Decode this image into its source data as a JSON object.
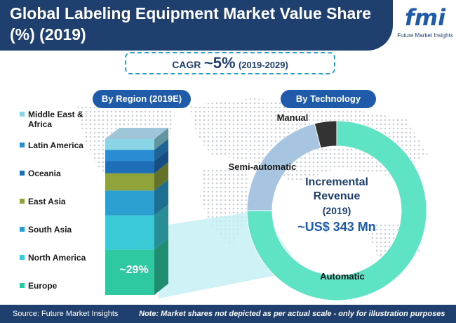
{
  "header": {
    "title": "Global Labeling Equipment Market Value Share (%) (2019)"
  },
  "logo": {
    "word": "fmi",
    "subtitle": "Future Market Insights"
  },
  "cagr": {
    "label": "CAGR",
    "value": "~5%",
    "period": "(2019-2029)"
  },
  "region_chart": {
    "heading": "By Region (2019E)",
    "highlight_label": "~29%"
  },
  "technology_chart": {
    "heading": "By Technology",
    "center": {
      "line1": "Incremental",
      "line2": "Revenue",
      "line3": "(2019)",
      "line4": "~US$ 343 Mn"
    }
  },
  "chart_data": [
    {
      "type": "bar",
      "title": "By Region (2019E)",
      "stacked": true,
      "categories": [
        "Europe",
        "North America",
        "South Asia",
        "East Asia",
        "Oceania",
        "Latin America",
        "Middle East & Africa"
      ],
      "values": [
        29,
        22,
        16,
        11,
        8,
        7,
        7
      ],
      "labels": [
        "~29%",
        "",
        "",
        "",
        "",
        "",
        ""
      ],
      "colors": [
        "#2ec9a0",
        "#3ac9d6",
        "#2a9fd0",
        "#8ea33a",
        "#1f6fb8",
        "#2a8dd4",
        "#8ad6e6"
      ],
      "legend_placement": "left"
    },
    {
      "type": "pie",
      "title": "By Technology",
      "donut": true,
      "categories": [
        "Automatic",
        "Semi-automatic",
        "Manual"
      ],
      "values": [
        75,
        21,
        4
      ],
      "colors": [
        "#5ee3c5",
        "#a7c4e0",
        "#333333"
      ]
    }
  ],
  "footer": {
    "source": "Source: Future Market Insights",
    "note": "Note: Market shares not depicted as per actual scale - only for illustration purposes"
  }
}
